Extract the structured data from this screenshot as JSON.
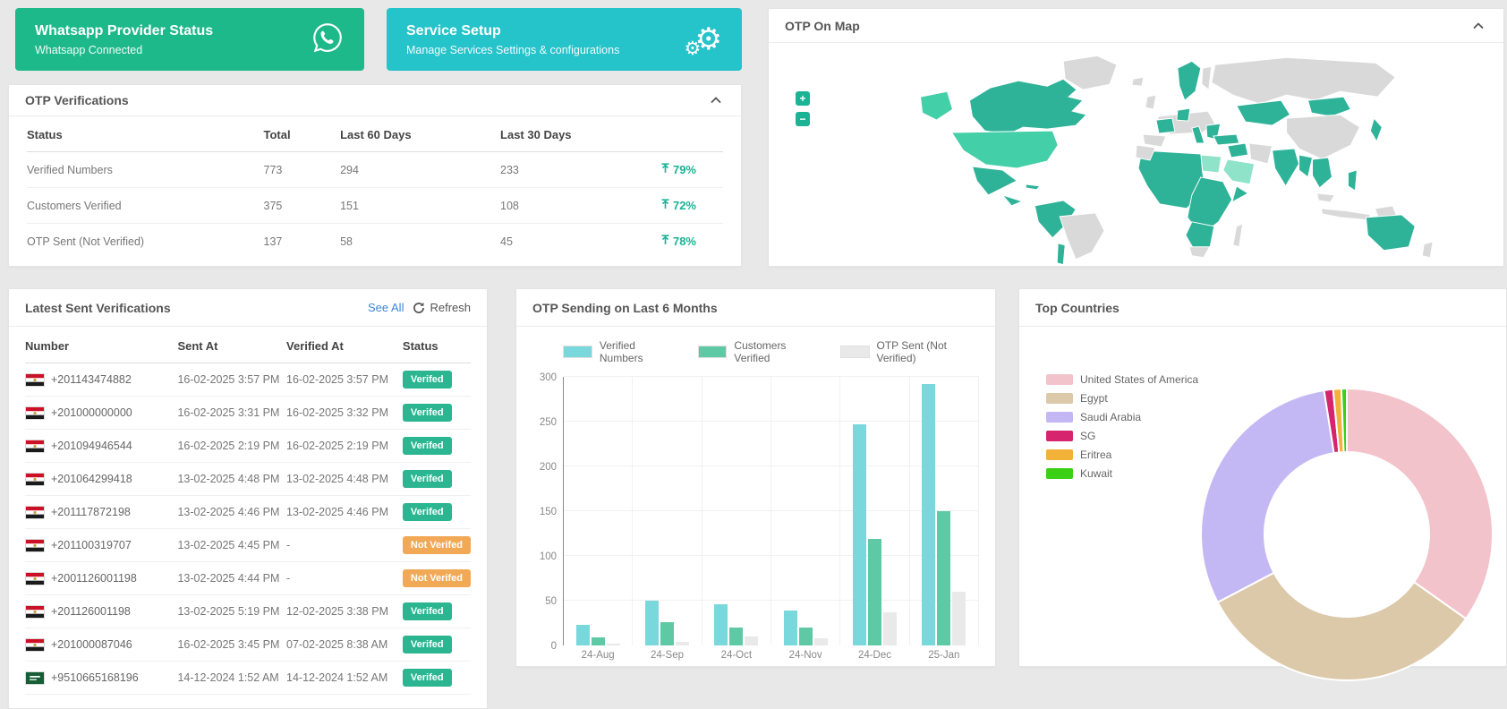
{
  "cards": {
    "whatsapp": {
      "title": "Whatsapp Provider Status",
      "subtitle": "Whatsapp Connected",
      "bg": "#1eb98a"
    },
    "service": {
      "title": "Service Setup",
      "subtitle": "Manage Services Settings & configurations",
      "bg": "#25c3ca"
    }
  },
  "otp_verifications": {
    "title": "OTP Verifications",
    "columns": {
      "status": "Status",
      "total": "Total",
      "last60": "Last 60 Days",
      "last30": "Last 30 Days"
    },
    "accent": "#1ab394",
    "rows": [
      {
        "status": "Verified Numbers",
        "total": "773",
        "last60": "294",
        "last30": "233",
        "pct": "79%"
      },
      {
        "status": "Customers Verified",
        "total": "375",
        "last60": "151",
        "last30": "108",
        "pct": "72%"
      },
      {
        "status": "OTP Sent (Not Verified)",
        "total": "137",
        "last60": "58",
        "last30": "45",
        "pct": "78%"
      }
    ]
  },
  "map_panel": {
    "title": "OTP On Map",
    "zoom_in_label": "+",
    "zoom_out_label": "−",
    "colors": {
      "land_active": "#2eb398",
      "land_light": "#43cfa8",
      "land_pale": "#8fe3c9",
      "land_inactive": "#d9d9d9"
    }
  },
  "latest": {
    "title": "Latest Sent Verifications",
    "see_all_label": "See All",
    "refresh_label": "Refresh",
    "columns": {
      "number": "Number",
      "sent": "Sent At",
      "verified": "Verified At",
      "status": "Status"
    },
    "badge_colors": {
      "verified": "#2bb591",
      "not_verified": "#f2a956"
    },
    "rows": [
      {
        "flag": "eg",
        "number": "+201143474882",
        "sent": "16-02-2025 3:57 PM",
        "verified": "16-02-2025 3:57 PM",
        "status": "Verifed",
        "type": "verified"
      },
      {
        "flag": "eg",
        "number": "+201000000000",
        "sent": "16-02-2025 3:31 PM",
        "verified": "16-02-2025 3:32 PM",
        "status": "Verifed",
        "type": "verified"
      },
      {
        "flag": "eg",
        "number": "+201094946544",
        "sent": "16-02-2025 2:19 PM",
        "verified": "16-02-2025 2:19 PM",
        "status": "Verifed",
        "type": "verified"
      },
      {
        "flag": "eg",
        "number": "+201064299418",
        "sent": "13-02-2025 4:48 PM",
        "verified": "13-02-2025 4:48 PM",
        "status": "Verifed",
        "type": "verified"
      },
      {
        "flag": "eg",
        "number": "+201117872198",
        "sent": "13-02-2025 4:46 PM",
        "verified": "13-02-2025 4:46 PM",
        "status": "Verifed",
        "type": "verified"
      },
      {
        "flag": "eg",
        "number": "+201100319707",
        "sent": "13-02-2025 4:45 PM",
        "verified": "-",
        "status": "Not Verifed",
        "type": "not_verified"
      },
      {
        "flag": "eg",
        "number": "+2001126001198",
        "sent": "13-02-2025 4:44 PM",
        "verified": "-",
        "status": "Not Verifed",
        "type": "not_verified"
      },
      {
        "flag": "eg",
        "number": "+201126001198",
        "sent": "13-02-2025 5:19 PM",
        "verified": "12-02-2025 3:38 PM",
        "status": "Verifed",
        "type": "verified"
      },
      {
        "flag": "eg",
        "number": "+201000087046",
        "sent": "16-02-2025 3:45 PM",
        "verified": "07-02-2025 8:38 AM",
        "status": "Verifed",
        "type": "verified"
      },
      {
        "flag": "sa",
        "number": "+9510665168196",
        "sent": "14-12-2024 1:52 AM",
        "verified": "14-12-2024 1:52 AM",
        "status": "Verifed",
        "type": "verified"
      }
    ]
  },
  "chart_data": [
    {
      "type": "bar",
      "title": "OTP Sending on Last 6 Months",
      "categories": [
        "24-Aug",
        "24-Sep",
        "24-Oct",
        "24-Nov",
        "24-Dec",
        "25-Jan"
      ],
      "series": [
        {
          "name": "Verified Numbers",
          "color": "#79d8dc",
          "values": [
            23,
            50,
            46,
            39,
            247,
            292
          ]
        },
        {
          "name": "Customers Verified",
          "color": "#5fc9a5",
          "values": [
            9,
            26,
            20,
            20,
            119,
            150
          ]
        },
        {
          "name": "OTP Sent (Not Verified)",
          "color": "#e9e9e9",
          "values": [
            2,
            4,
            10,
            8,
            37,
            60
          ]
        }
      ],
      "xlabel": "",
      "ylabel": "",
      "ylim": [
        0,
        300
      ],
      "yticks": [
        0,
        50,
        100,
        150,
        200,
        250,
        300
      ],
      "grid": true,
      "legend_position": "top"
    },
    {
      "type": "pie",
      "donut": true,
      "title": "Top Countries",
      "labels": [
        "United States of America",
        "Egypt",
        "Saudi Arabia",
        "SG",
        "Eritrea",
        "Kuwait"
      ],
      "values": [
        34.8,
        32.5,
        30.2,
        1.0,
        0.9,
        0.6
      ],
      "colors": [
        "#f3c3cc",
        "#dcc9a9",
        "#c4b8f4",
        "#d6246e",
        "#f2b138",
        "#3bd016"
      ],
      "legend_position": "top-left"
    }
  ]
}
